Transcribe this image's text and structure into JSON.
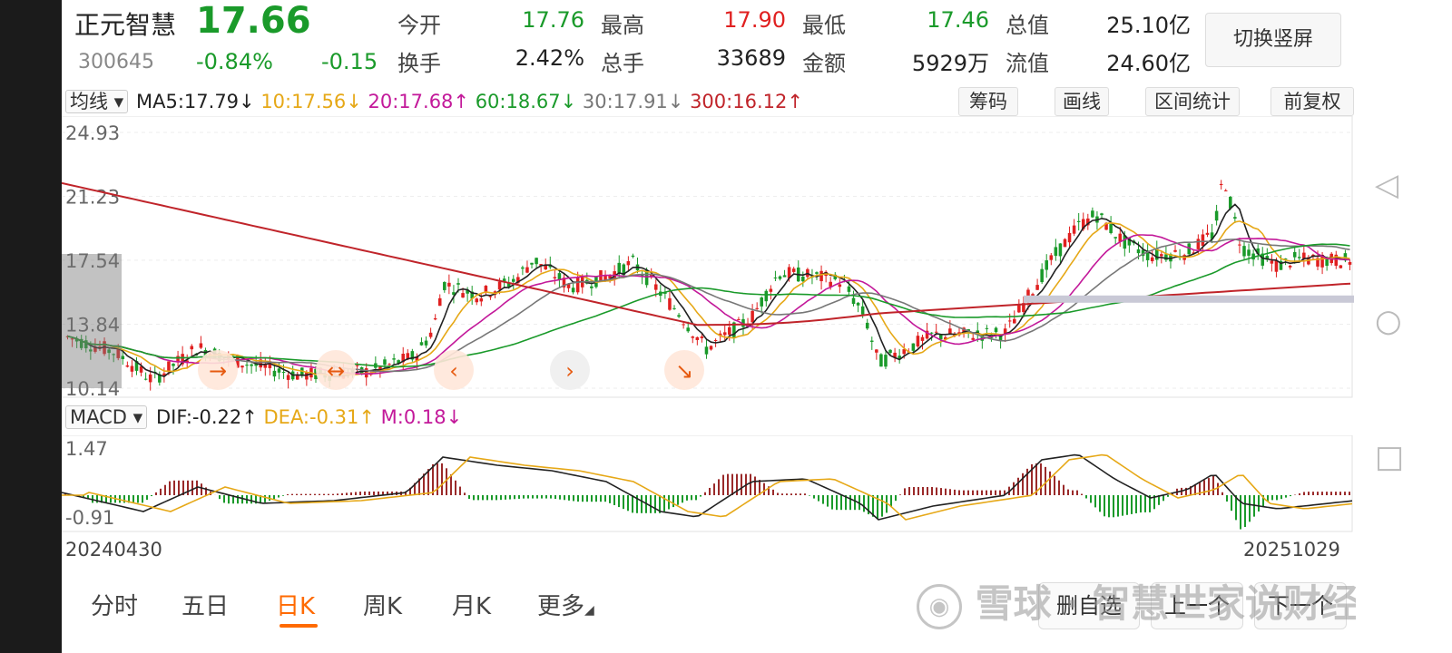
{
  "header": {
    "name": "正元智慧",
    "price": "17.66",
    "code": "300645",
    "change_pct": "-0.84%",
    "change": "-0.15",
    "stats": [
      {
        "label": "今开",
        "value": "17.76",
        "color": "green"
      },
      {
        "label": "最高",
        "value": "17.90",
        "color": "red"
      },
      {
        "label": "最低",
        "value": "17.46",
        "color": "green"
      },
      {
        "label": "总值",
        "value": "25.10亿",
        "color": "dark"
      },
      {
        "label": "换手",
        "value": "2.42%",
        "color": "dark"
      },
      {
        "label": "总手",
        "value": "33689",
        "color": "dark"
      },
      {
        "label": "金额",
        "value": "5929万",
        "color": "dark"
      },
      {
        "label": "流值",
        "value": "24.60亿",
        "color": "dark"
      }
    ],
    "switch_button": "切换竖屏"
  },
  "ma_toolbar": {
    "selector": "均线",
    "items": [
      {
        "text": "MA5:17.79↓",
        "color": "#222222"
      },
      {
        "text": "10:17.56↓",
        "color": "#e6a817"
      },
      {
        "text": "20:17.68↑",
        "color": "#c3199a"
      },
      {
        "text": "60:18.67↓",
        "color": "#1a9a2a"
      },
      {
        "text": "30:17.91↓",
        "color": "#777777"
      },
      {
        "text": "300:16.12↑",
        "color": "#c0242a"
      }
    ],
    "buttons": [
      "筹码",
      "画线",
      "区间统计",
      "前复权"
    ]
  },
  "chart_data": [
    {
      "type": "candlestick",
      "y_ticks": [
        "24.93",
        "21.23",
        "17.54",
        "13.84",
        "10.14"
      ],
      "ylim": [
        10.14,
        24.93
      ],
      "grid": true
    },
    {
      "type": "line",
      "indicator": "MACD",
      "y_ticks": [
        "1.47",
        "-0.91"
      ],
      "ylim": [
        -0.91,
        1.47
      ],
      "x_labels": [
        "20240430",
        "20251029"
      ]
    }
  ],
  "macd_toolbar": {
    "selector": "MACD",
    "items": [
      {
        "text": "DIF:-0.22↑",
        "color": "#222222"
      },
      {
        "text": "DEA:-0.31↑",
        "color": "#e6a817"
      },
      {
        "text": "M:0.18↓",
        "color": "#c3199a"
      }
    ]
  },
  "tabs": [
    "分时",
    "五日",
    "日K",
    "周K",
    "月K",
    "更多"
  ],
  "active_tab": "日K",
  "bottom_buttons": [
    "删自选",
    "上一个",
    "下一个"
  ],
  "watermark": "雪球 · 智慧世家说财经",
  "colors": {
    "up": "#e02020",
    "down": "#1a9a2a",
    "accent": "#ff6a00"
  }
}
